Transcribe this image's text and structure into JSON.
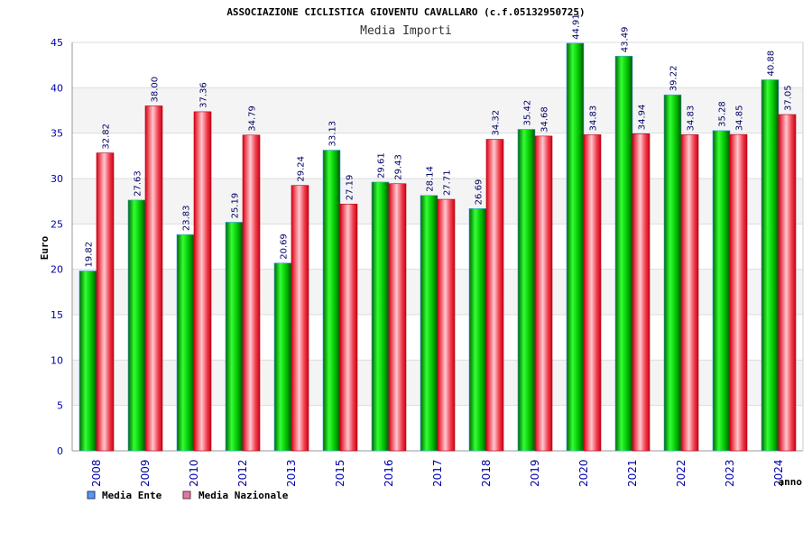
{
  "chart_data": {
    "type": "bar",
    "title": "ASSOCIAZIONE CICLISTICA GIOVENTU CAVALLARO (c.f.05132950725)",
    "subtitle": "Media Importi",
    "xlabel": "anno",
    "ylabel": "Euro",
    "ylim": [
      0,
      45
    ],
    "yticks": [
      0,
      5,
      10,
      15,
      20,
      25,
      30,
      35,
      40,
      45
    ],
    "grid": true,
    "legend_position": "bottom-left",
    "categories": [
      "2008",
      "2009",
      "2010",
      "2012",
      "2013",
      "2015",
      "2016",
      "2017",
      "2018",
      "2019",
      "2020",
      "2021",
      "2022",
      "2023",
      "2024"
    ],
    "series": [
      {
        "name": "Media Ente",
        "color": "#00b000",
        "legend_color": "#5599ee",
        "values": [
          19.82,
          27.63,
          23.83,
          25.19,
          20.69,
          33.13,
          29.61,
          28.14,
          26.69,
          35.42,
          44.91,
          43.49,
          39.22,
          35.28,
          40.88
        ],
        "labels": [
          "19.82",
          "27.63",
          "23.83",
          "25.19",
          "20.69",
          "33.13",
          "29.61",
          "28.14",
          "26.69",
          "35.42",
          "44.91",
          "43.49",
          "39.22",
          "35.28",
          "40.88"
        ]
      },
      {
        "name": "Media Nazionale",
        "color": "#e82030",
        "legend_color": "#dd77aa",
        "values": [
          32.82,
          38.0,
          37.36,
          34.79,
          29.24,
          27.19,
          29.43,
          27.71,
          34.32,
          34.68,
          34.83,
          34.94,
          34.83,
          34.85,
          37.05
        ],
        "labels": [
          "32.82",
          "38.00",
          "37.36",
          "34.79",
          "29.24",
          "27.19",
          "29.43",
          "27.71",
          "34.32",
          "34.68",
          "34.83",
          "34.94",
          "34.83",
          "34.85",
          "37.05"
        ]
      }
    ]
  }
}
